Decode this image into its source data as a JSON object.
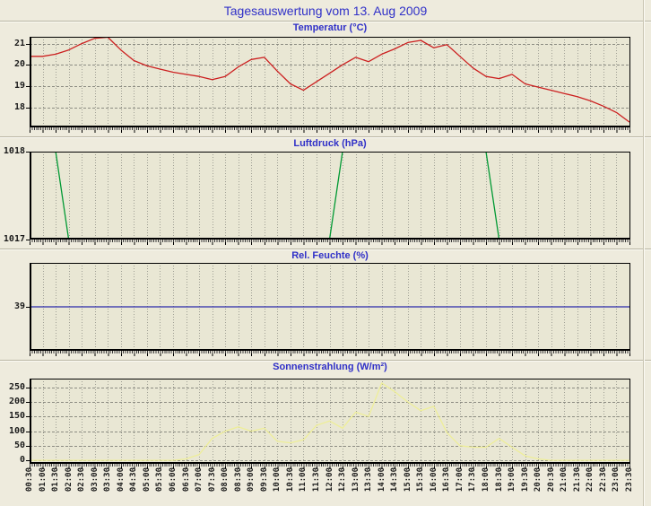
{
  "page": {
    "title": "Tagesauswertung vom 13. Aug 2009"
  },
  "colors": {
    "page_bg": "#eeebdd",
    "plot_bg": "#e9e7d4",
    "title_blue": "#3030c8",
    "grid_vertical": "#a0a095",
    "grid_horizontal": "#8c8c82",
    "axis": "#000000",
    "temperature_line": "#cc2020",
    "pressure_line": "#009933",
    "humidity_line": "#2a2aaa",
    "solar_line": "#eeee99"
  },
  "x_axis": {
    "tick_labels": [
      "00:30",
      "01:00",
      "01:30",
      "02:00",
      "02:30",
      "03:00",
      "03:30",
      "04:00",
      "04:30",
      "05:00",
      "05:30",
      "06:00",
      "06:30",
      "07:00",
      "07:30",
      "08:00",
      "08:30",
      "09:00",
      "09:30",
      "10:00",
      "10:30",
      "11:00",
      "11:30",
      "12:00",
      "12:30",
      "13:00",
      "13:30",
      "14:00",
      "14:30",
      "15:00",
      "15:30",
      "16:00",
      "16:30",
      "17:00",
      "17:30",
      "18:00",
      "18:30",
      "19:00",
      "19:30",
      "20:00",
      "20:30",
      "21:00",
      "21:30",
      "22:00",
      "22:30",
      "23:00",
      "23:30"
    ]
  },
  "chart_data": [
    {
      "type": "line",
      "name": "temperature",
      "title": "Temperatur (°C)",
      "color": "#cc2020",
      "ylim": [
        17.05,
        21.32
      ],
      "yticks": [
        18,
        19,
        20,
        21
      ],
      "grid_horizontal": true,
      "values": [
        20.4,
        20.4,
        20.5,
        20.7,
        21.0,
        21.25,
        21.3,
        20.7,
        20.2,
        19.95,
        19.8,
        19.65,
        19.55,
        19.45,
        19.3,
        19.45,
        19.9,
        20.25,
        20.35,
        19.7,
        19.1,
        18.8,
        19.2,
        19.6,
        20.0,
        20.35,
        20.15,
        20.5,
        20.75,
        21.05,
        21.15,
        20.8,
        20.95,
        20.4,
        19.85,
        19.45,
        19.35,
        19.55,
        19.1,
        18.95,
        18.8,
        18.65,
        18.5,
        18.3,
        18.05,
        17.75,
        17.3
      ]
    },
    {
      "type": "line",
      "name": "pressure",
      "title": "Luftdruck (hPa)",
      "color": "#009933",
      "ylim": [
        1017,
        1018
      ],
      "yticks": [
        1018,
        1017
      ],
      "grid_horizontal": false,
      "values": [
        1018,
        1018,
        1018,
        1017,
        1017,
        1017,
        1017,
        1017,
        1017,
        1017,
        1017,
        1017,
        1017,
        1017,
        1017,
        1017,
        1017,
        1017,
        1017,
        1017,
        1017,
        1017,
        1017,
        1017,
        1018,
        1018,
        1018,
        1018,
        1018,
        1018,
        1018,
        1018,
        1018,
        1018,
        1018,
        1018,
        1017,
        1017,
        1017,
        1017,
        1017,
        1017,
        1017,
        1017,
        1017,
        1017,
        1017
      ]
    },
    {
      "type": "line",
      "name": "humidity",
      "title": "Rel. Feuchte (%)",
      "color": "#2a2aaa",
      "ylim": [
        38,
        40
      ],
      "yticks": [
        39
      ],
      "grid_horizontal": false,
      "values": [
        39,
        39,
        39,
        39,
        39,
        39,
        39,
        39,
        39,
        39,
        39,
        39,
        39,
        39,
        39,
        39,
        39,
        39,
        39,
        39,
        39,
        39,
        39,
        39,
        39,
        39,
        39,
        39,
        39,
        39,
        39,
        39,
        39,
        39,
        39,
        39,
        39,
        39,
        39,
        39,
        39,
        39,
        39,
        39,
        39,
        39,
        39
      ]
    },
    {
      "type": "line",
      "name": "solar",
      "title": "Sonnenstrahlung (W/m²)",
      "color": "#eeee99",
      "ylim": [
        -12,
        280
      ],
      "yticks": [
        250,
        200,
        150,
        100,
        50,
        0
      ],
      "grid_horizontal": true,
      "values": [
        0,
        0,
        0,
        0,
        0,
        0,
        0,
        0,
        0,
        0,
        0,
        0,
        5,
        20,
        75,
        100,
        115,
        100,
        110,
        65,
        60,
        70,
        120,
        135,
        110,
        165,
        150,
        265,
        235,
        200,
        170,
        185,
        95,
        50,
        45,
        45,
        75,
        45,
        15,
        5,
        0,
        0,
        0,
        0,
        0,
        0,
        0
      ]
    }
  ]
}
